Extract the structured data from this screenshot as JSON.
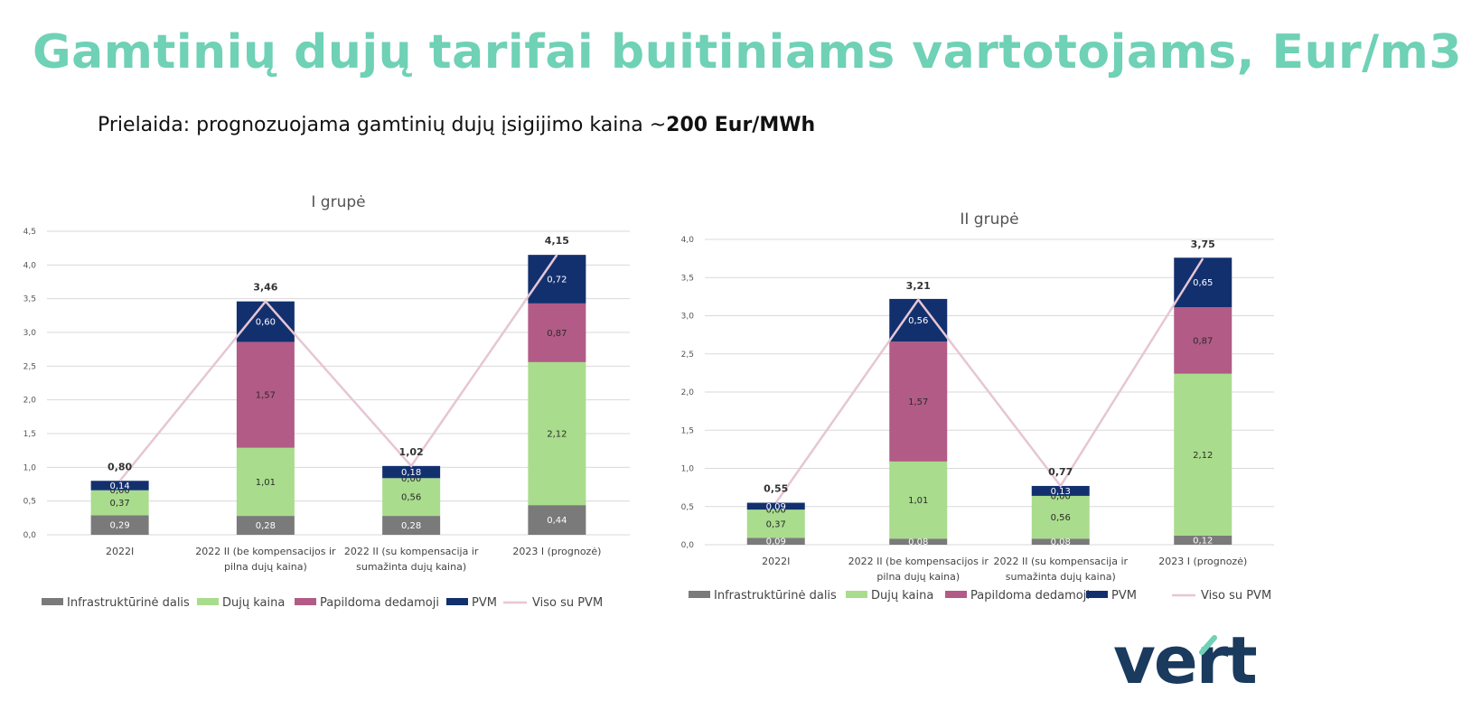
{
  "header": {
    "title": "Gamtinių dujų tarifai buitiniams vartotojams, Eur/m3",
    "subtitle_prefix": "Prielaida: prognozuojama gamtinių dujų įsigijimo kaina ~",
    "subtitle_bold": "200 Eur/MWh"
  },
  "logo": {
    "text": "vert",
    "color": "#1a3a5e",
    "accent": "#6fd1b5"
  },
  "colors": {
    "infrastruktura": "#7a7a7a",
    "duju_kaina": "#a9dc8c",
    "papildoma": "#b25b86",
    "pvm": "#13306e",
    "viso": "#e6c6d4"
  },
  "chart_data": [
    {
      "type": "bar",
      "stacked": true,
      "title": "I grupė",
      "categories": [
        "2022I",
        "2022 II (be kompensacijos ir pilna dujų kaina)",
        "2022 II (su kompensacija ir sumažinta dujų kaina)",
        "2023 I (prognozė)"
      ],
      "category_lines": [
        [
          "2022I"
        ],
        [
          "2022 II (be kompensacijos ir",
          "pilna dujų kaina)"
        ],
        [
          "2022 II (su kompensacija ir",
          "sumažinta dujų kaina)"
        ],
        [
          "2023 I (prognozė)"
        ]
      ],
      "series": [
        {
          "name": "Infrastruktūrinė dalis",
          "values": [
            0.29,
            0.28,
            0.28,
            0.44
          ],
          "labels": [
            "0,29",
            "0,28",
            "0,28",
            "0,44"
          ],
          "color": "#7a7a7a"
        },
        {
          "name": "Dujų kaina",
          "values": [
            0.37,
            1.01,
            0.56,
            2.12
          ],
          "labels": [
            "0,37",
            "1,01",
            "0,56",
            "2,12"
          ],
          "color": "#a9dc8c"
        },
        {
          "name": "Papildoma dedamoji",
          "values": [
            0.0,
            1.57,
            0.0,
            0.87
          ],
          "labels": [
            "0,00",
            "1,57",
            "0,00",
            "0,87"
          ],
          "color": "#b25b86"
        },
        {
          "name": "PVM",
          "values": [
            0.14,
            0.6,
            0.18,
            0.72
          ],
          "labels": [
            "0,14",
            "0,60",
            "0,18",
            "0,72"
          ],
          "color": "#13306e"
        }
      ],
      "totals": {
        "name": "Viso su PVM",
        "values": [
          0.8,
          3.46,
          1.02,
          4.15
        ],
        "labels": [
          "0,80",
          "3,46",
          "1,02",
          "4,15"
        ],
        "color": "#e6c6d4"
      },
      "ylim": [
        0,
        4.5
      ],
      "yticks": [
        0,
        0.5,
        1.0,
        1.5,
        2.0,
        2.5,
        3.0,
        3.5,
        4.0,
        4.5
      ],
      "ytick_labels": [
        "0,0",
        "0,5",
        "1,0",
        "1,5",
        "2,0",
        "2,5",
        "3,0",
        "3,5",
        "4,0",
        "4,5"
      ],
      "grid": true,
      "legend": "bottom"
    },
    {
      "type": "bar",
      "stacked": true,
      "title": "II grupė",
      "categories": [
        "2022I",
        "2022 II (be kompensacijos ir pilna dujų kaina)",
        "2022 II (su kompensacija ir sumažinta dujų kaina)",
        "2023 I (prognozė)"
      ],
      "category_lines": [
        [
          "2022I"
        ],
        [
          "2022 II (be kompensacijos ir",
          "pilna dujų kaina)"
        ],
        [
          "2022 II (su kompensacija ir",
          "sumažinta dujų kaina)"
        ],
        [
          "2023 I (prognozė)"
        ]
      ],
      "series": [
        {
          "name": "Infrastruktūrinė dalis",
          "values": [
            0.09,
            0.08,
            0.08,
            0.12
          ],
          "labels": [
            "0,09",
            "0,08",
            "0,08",
            "0,12"
          ],
          "color": "#7a7a7a"
        },
        {
          "name": "Dujų kaina",
          "values": [
            0.37,
            1.01,
            0.56,
            2.12
          ],
          "labels": [
            "0,37",
            "1,01",
            "0,56",
            "2,12"
          ],
          "color": "#a9dc8c"
        },
        {
          "name": "Papildoma dedamoji",
          "values": [
            0.0,
            1.57,
            0.0,
            0.87
          ],
          "labels": [
            "0,00",
            "1,57",
            "0,00",
            "0,87"
          ],
          "color": "#b25b86"
        },
        {
          "name": "PVM",
          "values": [
            0.09,
            0.56,
            0.13,
            0.65
          ],
          "labels": [
            "0,09",
            "0,56",
            "0,13",
            "0,65"
          ],
          "color": "#13306e"
        }
      ],
      "totals": {
        "name": "Viso su PVM",
        "values": [
          0.55,
          3.21,
          0.77,
          3.75
        ],
        "labels": [
          "0,55",
          "3,21",
          "0,77",
          "3,75"
        ],
        "color": "#e6c6d4"
      },
      "ylim": [
        0,
        4.0
      ],
      "yticks": [
        0,
        0.5,
        1.0,
        1.5,
        2.0,
        2.5,
        3.0,
        3.5,
        4.0
      ],
      "ytick_labels": [
        "0,0",
        "0,5",
        "1,0",
        "1,5",
        "2,0",
        "2,5",
        "3,0",
        "3,5",
        "4,0"
      ],
      "grid": true,
      "legend": "bottom"
    }
  ]
}
